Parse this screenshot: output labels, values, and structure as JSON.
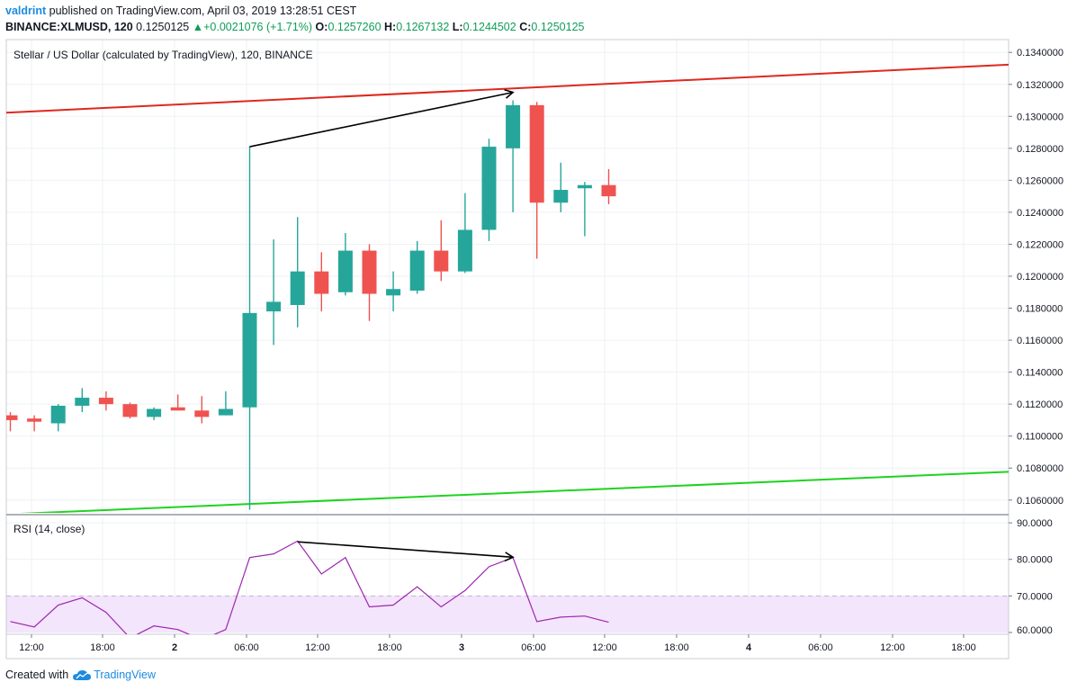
{
  "header": {
    "user": "valdrint",
    "published_text": "published on TradingView.com, April 03, 2019 13:28:51 CEST",
    "symbol": "BINANCE:XLMUSD, 120",
    "last": "0.1250125",
    "change": "+0.0021076 (+1.71%)",
    "o_label": "O:",
    "o_value": "0.1257260",
    "h_label": "H:",
    "h_value": "0.1267132",
    "l_label": "L:",
    "l_value": "0.1244502",
    "c_label": "C:",
    "c_value": "0.1250125"
  },
  "footer": {
    "created_with": "Created with",
    "brand": "TradingView"
  },
  "colors": {
    "up": "#26a69a",
    "down": "#ef5350",
    "rsi": "#9c27b0",
    "resistance": "#e0281e",
    "support": "#1fd31f",
    "rsi_band": "#f3e5fb"
  },
  "chart_data": [
    {
      "type": "candlestick",
      "title": "Stellar / US Dollar (calculated by TradingView), 120, BINANCE",
      "ylim": [
        0.1052,
        0.1348
      ],
      "y_ticks": [
        "0.1340000",
        "0.1320000",
        "0.1300000",
        "0.1280000",
        "0.1260000",
        "0.1240000",
        "0.1220000",
        "0.1200000",
        "0.1180000",
        "0.1160000",
        "0.1140000",
        "0.1120000",
        "0.1100000",
        "0.1080000",
        "0.1060000"
      ],
      "x_ticks": [
        "12:00",
        "18:00",
        "2",
        "06:00",
        "12:00",
        "18:00",
        "3",
        "06:00",
        "12:00",
        "18:00",
        "4",
        "06:00",
        "12:00",
        "18:00"
      ],
      "candles": [
        {
          "o": 0.1113,
          "h": 0.1115,
          "l": 0.1103,
          "c": 0.111
        },
        {
          "o": 0.1111,
          "h": 0.1113,
          "l": 0.1103,
          "c": 0.1109
        },
        {
          "o": 0.1108,
          "h": 0.112,
          "l": 0.1103,
          "c": 0.1119
        },
        {
          "o": 0.1119,
          "h": 0.113,
          "l": 0.1115,
          "c": 0.1124
        },
        {
          "o": 0.1124,
          "h": 0.1128,
          "l": 0.1116,
          "c": 0.112
        },
        {
          "o": 0.112,
          "h": 0.1121,
          "l": 0.1111,
          "c": 0.1112
        },
        {
          "o": 0.1112,
          "h": 0.1118,
          "l": 0.111,
          "c": 0.1117
        },
        {
          "o": 0.1118,
          "h": 0.1126,
          "l": 0.1116,
          "c": 0.1116
        },
        {
          "o": 0.1116,
          "h": 0.1125,
          "l": 0.1108,
          "c": 0.1112
        },
        {
          "o": 0.1113,
          "h": 0.1128,
          "l": 0.1113,
          "c": 0.1117
        },
        {
          "o": 0.1118,
          "h": 0.1281,
          "l": 0.1054,
          "c": 0.1177
        },
        {
          "o": 0.1178,
          "h": 0.1223,
          "l": 0.1157,
          "c": 0.1184
        },
        {
          "o": 0.1182,
          "h": 0.1237,
          "l": 0.1168,
          "c": 0.1203
        },
        {
          "o": 0.1203,
          "h": 0.1215,
          "l": 0.1178,
          "c": 0.1189
        },
        {
          "o": 0.119,
          "h": 0.1227,
          "l": 0.1188,
          "c": 0.1216
        },
        {
          "o": 0.1216,
          "h": 0.122,
          "l": 0.1172,
          "c": 0.1189
        },
        {
          "o": 0.1188,
          "h": 0.1203,
          "l": 0.1178,
          "c": 0.1192
        },
        {
          "o": 0.1191,
          "h": 0.1222,
          "l": 0.1189,
          "c": 0.1216
        },
        {
          "o": 0.1216,
          "h": 0.1235,
          "l": 0.1197,
          "c": 0.1203
        },
        {
          "o": 0.1203,
          "h": 0.1252,
          "l": 0.1202,
          "c": 0.1229
        },
        {
          "o": 0.1229,
          "h": 0.1286,
          "l": 0.1222,
          "c": 0.1281
        },
        {
          "o": 0.128,
          "h": 0.131,
          "l": 0.124,
          "c": 0.1307
        },
        {
          "o": 0.1307,
          "h": 0.1309,
          "l": 0.1211,
          "c": 0.1246
        },
        {
          "o": 0.1246,
          "h": 0.1271,
          "l": 0.124,
          "c": 0.1254
        },
        {
          "o": 0.1255,
          "h": 0.1259,
          "l": 0.1225,
          "c": 0.1257
        },
        {
          "o": 0.1257,
          "h": 0.1267,
          "l": 0.1245,
          "c": 0.125
        }
      ],
      "trendlines": {
        "resistance": {
          "y_start": 0.13023,
          "y_end": 0.13323
        },
        "support": {
          "y_start": 0.10511,
          "y_end": 0.10777
        }
      },
      "annotation_arrow": {
        "from_candle": 10,
        "from_y": 0.1281,
        "to_candle": 21,
        "to_y": 0.1315
      }
    },
    {
      "type": "line",
      "title": "RSI (14, close)",
      "ylim": [
        59.5,
        91.5
      ],
      "y_ticks": [
        "90.0000",
        "80.0000",
        "70.0000",
        "60.0000"
      ],
      "band": [
        60,
        70
      ],
      "values": [
        63.0,
        61.5,
        67.5,
        69.5,
        65.5,
        58.5,
        61.8,
        60.8,
        58.0,
        60.8,
        80.5,
        81.5,
        85.0,
        76.0,
        80.5,
        67.0,
        67.5,
        72.5,
        67.0,
        71.5,
        78.0,
        80.5,
        63.0,
        64.2,
        64.5,
        62.8
      ],
      "annotation_arrow": {
        "from_candle": 12,
        "from_y": 84.8,
        "to_candle": 21,
        "to_y": 80.6
      }
    }
  ]
}
